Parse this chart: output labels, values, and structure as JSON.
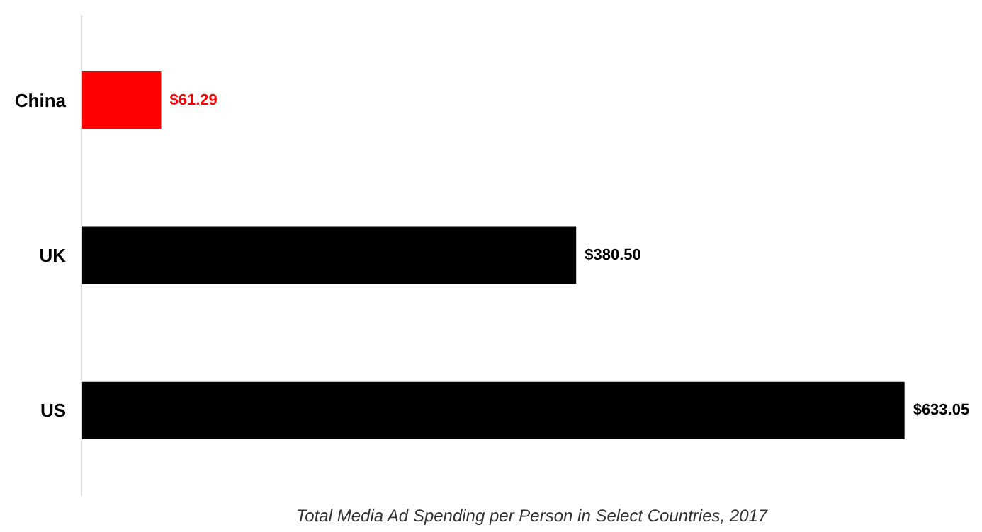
{
  "chart_data": {
    "type": "bar",
    "orientation": "horizontal",
    "title": "Total Media Ad Spending per Person in Select Countries, 2017",
    "categories": [
      "China",
      "UK",
      "US"
    ],
    "values": [
      61.29,
      380.5,
      633.05
    ],
    "colors": [
      "#ff0000",
      "#000000",
      "#000000"
    ],
    "value_labels": [
      "$61.29",
      "$380.50",
      "$633.05"
    ]
  }
}
